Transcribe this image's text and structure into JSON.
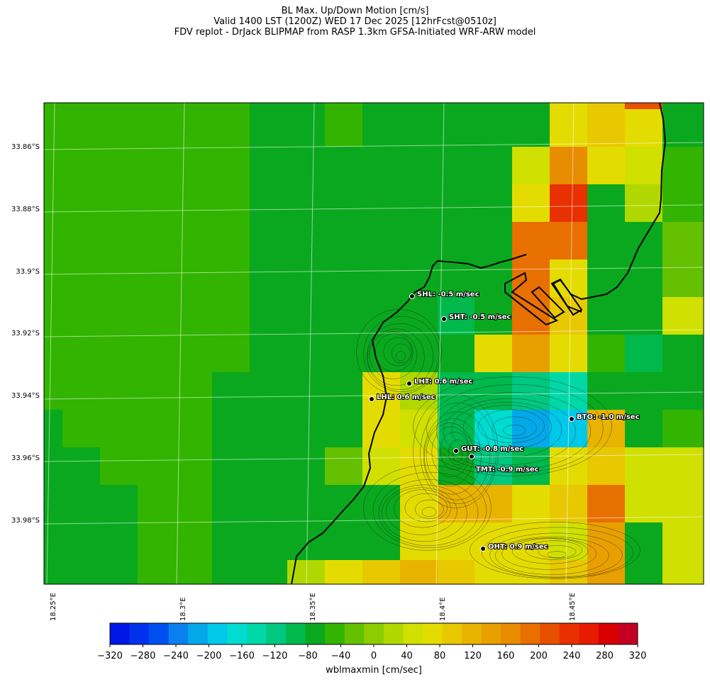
{
  "title": {
    "line1": "BL Max. Up/Down Motion [cm/s]",
    "line2": "Valid 1400 LST (1200Z) WED 17 Dec 2025 [12hrFcst@0510z]",
    "line3": "FDV replot - DrJack BLIPMAP from RASP 1.3km GFSA-Initiated WRF-ARW model"
  },
  "axes": {
    "lat_labels": [
      "33.86°S",
      "33.88°S",
      "33.9°S",
      "33.92°S",
      "33.94°S",
      "33.96°S",
      "33.98°S"
    ],
    "lon_labels": [
      "18.25°E",
      "18.3°E",
      "18.35°E",
      "18.4°E",
      "18.45°E"
    ]
  },
  "stations": [
    {
      "id": "SHL",
      "label": "SHL: -0.5 m/sec",
      "value": -0.5
    },
    {
      "id": "SHT",
      "label": "SHT: -0.5 m/sec",
      "value": -0.5
    },
    {
      "id": "LHT",
      "label": "LHT: 0.6 m/sec",
      "value": 0.6
    },
    {
      "id": "LHL",
      "label": "LHL: 0.6 m/sec",
      "value": 0.6
    },
    {
      "id": "BTO",
      "label": "BTO: -1.0 m/sec",
      "value": -1.0
    },
    {
      "id": "GUT",
      "label": "GUT: -0.8 m/sec",
      "value": -0.8
    },
    {
      "id": "TMT",
      "label": "TMT: -0.9 m/sec",
      "value": -0.9
    },
    {
      "id": "OHT",
      "label": "OHT: 0.9 m/sec",
      "value": 0.9
    }
  ],
  "colorbar": {
    "title": "wblmaxmin [cm/sec]",
    "min": -320,
    "max": 320,
    "step": 20,
    "tick_labels": [
      "−320",
      "−280",
      "−240",
      "−200",
      "−160",
      "−120",
      "−80",
      "−40",
      "0",
      "40",
      "80",
      "120",
      "160",
      "200",
      "240",
      "280",
      "320"
    ],
    "colors": [
      "#0016e6",
      "#0032ee",
      "#0050f0",
      "#0a80f0",
      "#04a8e8",
      "#00c8e8",
      "#00dcd0",
      "#00d8a8",
      "#00c880",
      "#00b84c",
      "#0aa81e",
      "#32b400",
      "#64c000",
      "#8ccc00",
      "#b0d800",
      "#d0e000",
      "#e4dc00",
      "#e8c800",
      "#e8b400",
      "#e8a000",
      "#e88c00",
      "#e87000",
      "#e85000",
      "#e83000",
      "#e81a00",
      "#d80000",
      "#c40020"
    ]
  }
}
